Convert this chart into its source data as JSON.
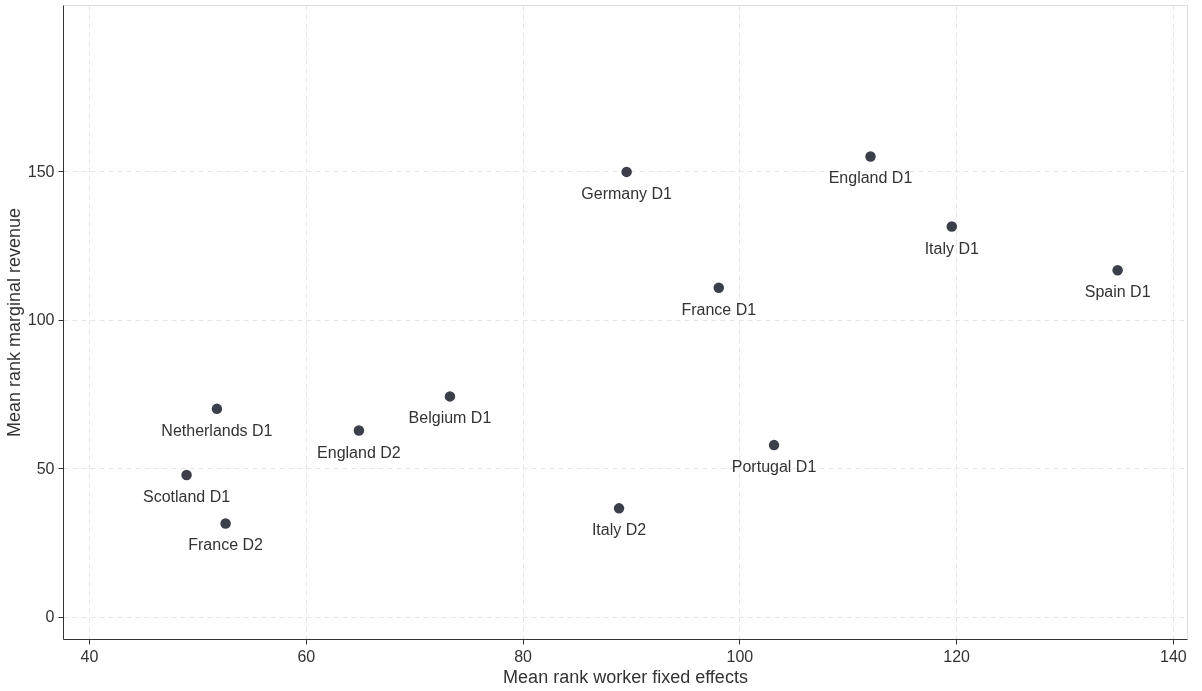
{
  "chart_data": {
    "type": "scatter",
    "xlabel": "Mean rank worker fixed effects",
    "ylabel": "Mean rank marginal revenue",
    "x": [
      89.6,
      112.1,
      119.6,
      134.9,
      98.1,
      103.2,
      88.9,
      73.3,
      64.9,
      51.8,
      49.0,
      52.6
    ],
    "series": [
      {
        "color": "#3b3f4a",
        "values": [
          149.8,
          155.0,
          131.4,
          116.7,
          110.8,
          57.8,
          36.5,
          74.2,
          62.7,
          70.0,
          47.7,
          31.4
        ]
      }
    ],
    "annotations": [
      {
        "text": "Germany D1",
        "x": 89.6,
        "y": 149.8
      },
      {
        "text": "England D1",
        "x": 112.1,
        "y": 155.0
      },
      {
        "text": "Italy D1",
        "x": 119.6,
        "y": 131.4
      },
      {
        "text": "Spain D1",
        "x": 134.9,
        "y": 116.7
      },
      {
        "text": "France D1",
        "x": 98.1,
        "y": 110.8
      },
      {
        "text": "Portugal D1",
        "x": 103.2,
        "y": 57.8
      },
      {
        "text": "Italy D2",
        "x": 88.9,
        "y": 36.5
      },
      {
        "text": "Belgium D1",
        "x": 73.3,
        "y": 74.2
      },
      {
        "text": "England D2",
        "x": 64.9,
        "y": 62.7
      },
      {
        "text": "Netherlands D1",
        "x": 51.8,
        "y": 70.0
      },
      {
        "text": "Scotland D1",
        "x": 49.0,
        "y": 47.7
      },
      {
        "text": "France D2",
        "x": 52.6,
        "y": 31.4
      }
    ],
    "xlim": [
      37.6,
      141.3
    ],
    "ylim": [
      -7.5,
      206
    ],
    "xticks": [
      40,
      60,
      80,
      100,
      120,
      140
    ],
    "yticks": [
      0,
      50,
      100,
      150
    ],
    "grid": true,
    "marker": "circle"
  }
}
